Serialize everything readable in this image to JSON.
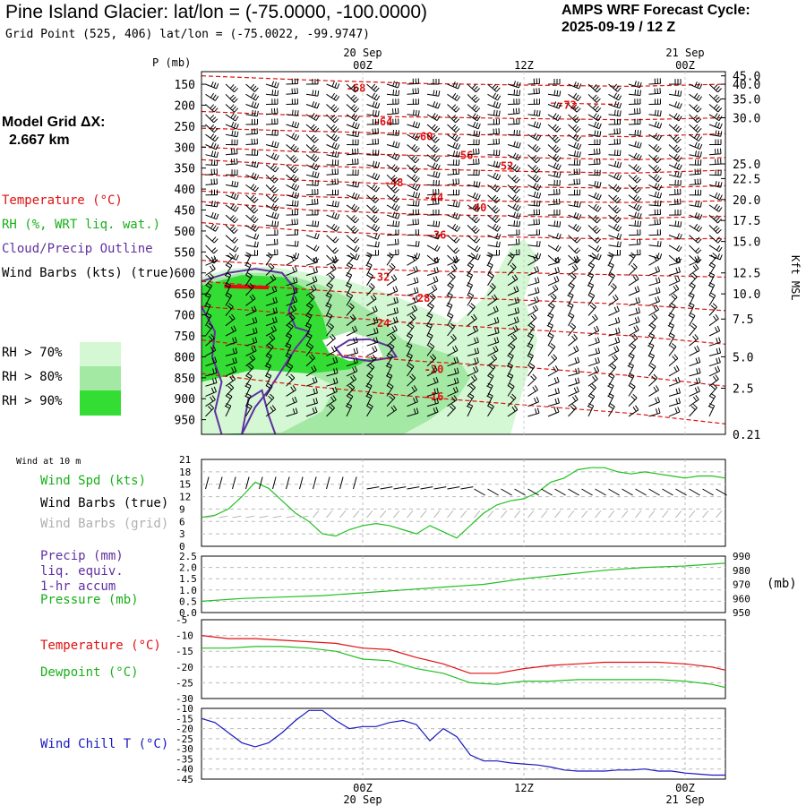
{
  "header": {
    "title": "Pine Island Glacier:  lat/lon = (-75.0000, -100.0000)",
    "subtitle": "Grid Point (525, 406) lat/lon = (-75.0022, -99.9747)",
    "cycle_line1": "AMPS WRF Forecast Cycle:",
    "cycle_line2": "2025-09-19 / 12  Z",
    "model_grid_label": "Model Grid ΔX:",
    "model_grid_value": "2.667 km"
  },
  "legend": {
    "temperature": "Temperature (°C)",
    "rh": "RH (%, WRT liq. wat.)",
    "cloud": "Cloud/Precip Outline",
    "barbs": "Wind Barbs (kts) (true)",
    "rh70": "RH > 70%",
    "rh80": "RH > 80%",
    "rh90": "RH > 90%"
  },
  "panel_labels": {
    "wind10": "Wind at 10 m",
    "wind_spd": "Wind Spd (kts)",
    "barbs_true": "Wind Barbs (true)",
    "barbs_grid": "Wind Barbs (grid)",
    "precip1": "Precip (mm)",
    "precip2": "liq. equiv.",
    "precip3": "1-hr accum",
    "pressure": "Pressure (mb)",
    "pressure_unit": "(mb)",
    "temperature": "Temperature (°C)",
    "dewpoint": "Dewpoint (°C)",
    "windchill": "Wind Chill T (°C)"
  },
  "colors": {
    "temperature": "#e01010",
    "rh70": "#d4f7d4",
    "rh80": "#a3e8a3",
    "rh90": "#33dd33",
    "green_line": "#20c020",
    "cloud": "#6030a0",
    "windchill": "#1818c0",
    "grid_barbs": "#b8b8b8"
  },
  "chart_data": [
    {
      "type": "heatmap",
      "name": "time-height cross section",
      "y_axis_label": "P (mb)",
      "y_ticks": [
        150,
        200,
        250,
        300,
        350,
        400,
        450,
        500,
        550,
        600,
        650,
        700,
        750,
        800,
        850,
        900,
        950
      ],
      "right_axis_label": "Kft MSL",
      "right_ticks": [
        "45.0",
        "40.0",
        "35.0",
        "30.0",
        "25.0",
        "22.5",
        "20.0",
        "17.5",
        "15.0",
        "12.5",
        "10.0",
        "7.5",
        "5.0",
        "2.5",
        "0.21"
      ],
      "right_tick_pressures": [
        130,
        150,
        185,
        230,
        340,
        375,
        425,
        475,
        525,
        600,
        650,
        710,
        800,
        875,
        985
      ],
      "top_date_labels": [
        "20 Sep",
        "21 Sep"
      ],
      "top_time_labels": [
        "00Z",
        "12Z",
        "00Z"
      ],
      "time_hours": [
        12,
        24,
        36
      ],
      "x_range_hours": [
        0,
        39
      ],
      "y_range_mb": [
        120,
        985
      ],
      "temperature_contours": [
        {
          "label": "-68",
          "p": [
            130,
            140,
            148,
            152,
            155,
            150
          ],
          "levels": [
            -68
          ]
        },
        {
          "label": "-72",
          "x_hours": [
            26,
            31
          ],
          "p": [
            195,
            198
          ]
        },
        {
          "label": "-64",
          "p": [
            215,
            225,
            228,
            232,
            235,
            230
          ]
        },
        {
          "label": "-60",
          "p": [
            255,
            262,
            268,
            272,
            275,
            268
          ]
        },
        {
          "label": "-56",
          "p": [
            300,
            312,
            320,
            325,
            330,
            325
          ]
        },
        {
          "label": "-52",
          "p": [
            330,
            345,
            352,
            358,
            362,
            355
          ]
        },
        {
          "label": "-48",
          "p": [
            365,
            380,
            390,
            395,
            398,
            392
          ]
        },
        {
          "label": "-44",
          "p": [
            405,
            418,
            425,
            430,
            432,
            428
          ]
        },
        {
          "label": "-40",
          "p": [
            430,
            450,
            460,
            465,
            470,
            465
          ]
        },
        {
          "label": "-36",
          "p": [
            480,
            500,
            510,
            515,
            520,
            518
          ]
        },
        {
          "label": "-32",
          "p": [
            570,
            585,
            595,
            600,
            605,
            610
          ]
        },
        {
          "label": "-28",
          "p": [
            620,
            640,
            655,
            665,
            675,
            690
          ]
        },
        {
          "label": "-24",
          "p": [
            680,
            700,
            720,
            735,
            750,
            770
          ]
        },
        {
          "label": "-20",
          "p": [
            760,
            790,
            810,
            825,
            845,
            870
          ]
        },
        {
          "label": "-16",
          "p": [
            840,
            870,
            895,
            915,
            935,
            960
          ]
        }
      ],
      "temperature_label_positions_hours": [
        {
          "label": "-68",
          "h": 11.5,
          "p": 160
        },
        {
          "label": "-72",
          "h": 27.2,
          "p": 200
        },
        {
          "label": "-64",
          "h": 13.5,
          "p": 240
        },
        {
          "label": "-60",
          "h": 16.5,
          "p": 275
        },
        {
          "label": "-56",
          "h": 19.5,
          "p": 320
        },
        {
          "label": "-52",
          "h": 22.5,
          "p": 345
        },
        {
          "label": "-48",
          "h": 14.3,
          "p": 385
        },
        {
          "label": "-44",
          "h": 17.3,
          "p": 420
        },
        {
          "label": "-40",
          "h": 20.5,
          "p": 445
        },
        {
          "label": "-36",
          "h": 17.5,
          "p": 510
        },
        {
          "label": "-32",
          "h": 13.3,
          "p": 610
        },
        {
          "label": "-28",
          "h": 16.3,
          "p": 660
        },
        {
          "label": "-24",
          "h": 13.3,
          "p": 720
        },
        {
          "label": "-20",
          "h": 17.3,
          "p": 830
        },
        {
          "label": "-16",
          "h": 17.3,
          "p": 895
        }
      ],
      "rh_thresholds_percent": [
        70,
        80,
        90
      ]
    },
    {
      "type": "line",
      "name": "10 m wind speed",
      "ylim": [
        0,
        21
      ],
      "y_ticks": [
        0,
        3,
        6,
        9,
        12,
        15,
        18,
        21
      ],
      "x_hours": [
        0,
        1,
        2,
        3,
        4,
        5,
        6,
        7,
        8,
        9,
        10,
        11,
        12,
        13,
        14,
        15,
        16,
        17,
        18,
        19,
        20,
        21,
        22,
        23,
        24,
        25,
        26,
        27,
        28,
        29,
        30,
        31,
        32,
        33,
        34,
        35,
        36,
        37,
        38,
        39
      ],
      "series": [
        {
          "values": [
            7,
            7.5,
            9,
            12,
            15.5,
            14,
            11,
            8,
            6,
            3,
            2.5,
            4,
            5,
            5.5,
            5,
            4,
            3,
            5,
            3.5,
            2,
            5,
            8,
            10,
            11,
            11.5,
            13,
            15.5,
            16.5,
            18.5,
            19,
            19,
            18,
            17.5,
            18,
            17.5,
            17,
            16.5,
            17,
            17,
            16.5
          ]
        }
      ]
    },
    {
      "type": "line",
      "name": "precip and pressure",
      "left_ylim": [
        0,
        2.5
      ],
      "left_ticks": [
        "0.0",
        "0.5",
        "1.0",
        "1.5",
        "2.0",
        "2.5"
      ],
      "right_ylim": [
        950,
        990
      ],
      "right_ticks": [
        "950",
        "960",
        "970",
        "980",
        "990"
      ],
      "x_hours": [
        0,
        3,
        6,
        9,
        12,
        15,
        18,
        21,
        24,
        27,
        30,
        33,
        36,
        39
      ],
      "series": [
        {
          "values": [
            958,
            960,
            961,
            962,
            964,
            966,
            968,
            970,
            974,
            977,
            980,
            982,
            983,
            985
          ]
        }
      ]
    },
    {
      "type": "line",
      "name": "temperature and dewpoint",
      "ylim": [
        -30,
        -5
      ],
      "y_ticks": [
        -30,
        -25,
        -20,
        -15,
        -10,
        -5
      ],
      "x_hours": [
        0,
        2,
        4,
        6,
        8,
        10,
        12,
        14,
        16,
        18,
        20,
        22,
        24,
        26,
        28,
        30,
        32,
        34,
        36,
        38,
        39
      ],
      "series": [
        {
          "values": [
            -10,
            -11,
            -11,
            -11.5,
            -12,
            -12.5,
            -14,
            -14.5,
            -17,
            -19,
            -22,
            -22,
            -20.5,
            -19.5,
            -19,
            -18.5,
            -18.5,
            -18.5,
            -19,
            -20,
            -21
          ]
        },
        {
          "values": [
            -14,
            -14,
            -13.5,
            -13.5,
            -14,
            -15,
            -17.5,
            -18,
            -20.5,
            -22,
            -25,
            -25.5,
            -24.5,
            -24.5,
            -24,
            -24,
            -24,
            -24,
            -24.5,
            -25.5,
            -26.5
          ]
        }
      ]
    },
    {
      "type": "line",
      "name": "wind chill",
      "ylim": [
        -45,
        -10
      ],
      "y_ticks": [
        -10,
        -15,
        -20,
        -25,
        -30,
        -35,
        -40,
        -45
      ],
      "x_hours": [
        0,
        1,
        2,
        3,
        4,
        5,
        6,
        7,
        8,
        9,
        10,
        11,
        12,
        13,
        14,
        15,
        16,
        17,
        18,
        19,
        20,
        21,
        22,
        23,
        24,
        25,
        26,
        27,
        28,
        29,
        30,
        31,
        32,
        33,
        34,
        35,
        36,
        37,
        38,
        39
      ],
      "series": [
        {
          "values": [
            -15,
            -17,
            -22,
            -27,
            -29,
            -27,
            -22,
            -16,
            -11,
            -11,
            -16,
            -20,
            -19,
            -19,
            -17,
            -16,
            -18,
            -26,
            -20,
            -24,
            -33,
            -36,
            -36,
            -37,
            -37.5,
            -38,
            -39,
            -40.5,
            -41,
            -41,
            -41,
            -40.5,
            -40.5,
            -40,
            -41,
            -41,
            -42,
            -42.5,
            -43,
            -43
          ]
        }
      ]
    }
  ]
}
